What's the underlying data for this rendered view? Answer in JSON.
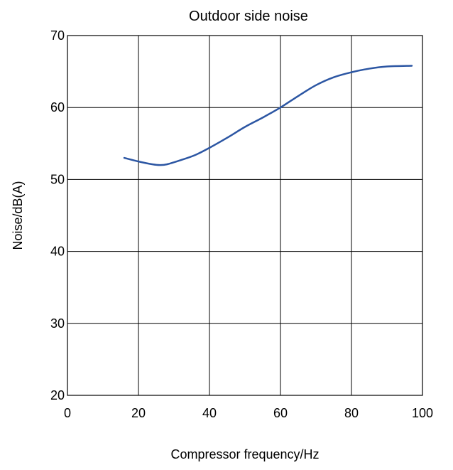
{
  "chart_data": {
    "type": "line",
    "title": "Outdoor side noise",
    "xlabel": "Compressor frequency/Hz",
    "ylabel": "Noise/dB(A)",
    "xlim": [
      0,
      100
    ],
    "ylim": [
      20,
      70
    ],
    "xticks": [
      0,
      20,
      40,
      60,
      80,
      100
    ],
    "yticks": [
      20,
      30,
      40,
      50,
      60,
      70
    ],
    "xtick_labels": [
      "0",
      "20",
      "40",
      "60",
      "80",
      "100"
    ],
    "ytick_labels": [
      "20",
      "30",
      "40",
      "50",
      "60",
      "70"
    ],
    "grid": true,
    "series": [
      {
        "color": "#2c56a3",
        "x": [
          16,
          20,
          24,
          26,
          28,
          32,
          36,
          40,
          45,
          50,
          55,
          60,
          65,
          70,
          75,
          80,
          85,
          90,
          97
        ],
        "y": [
          53.0,
          52.5,
          52.1,
          52.0,
          52.1,
          52.7,
          53.4,
          54.4,
          55.8,
          57.3,
          58.6,
          60.0,
          61.6,
          63.1,
          64.2,
          64.9,
          65.4,
          65.7,
          65.8
        ]
      }
    ]
  }
}
